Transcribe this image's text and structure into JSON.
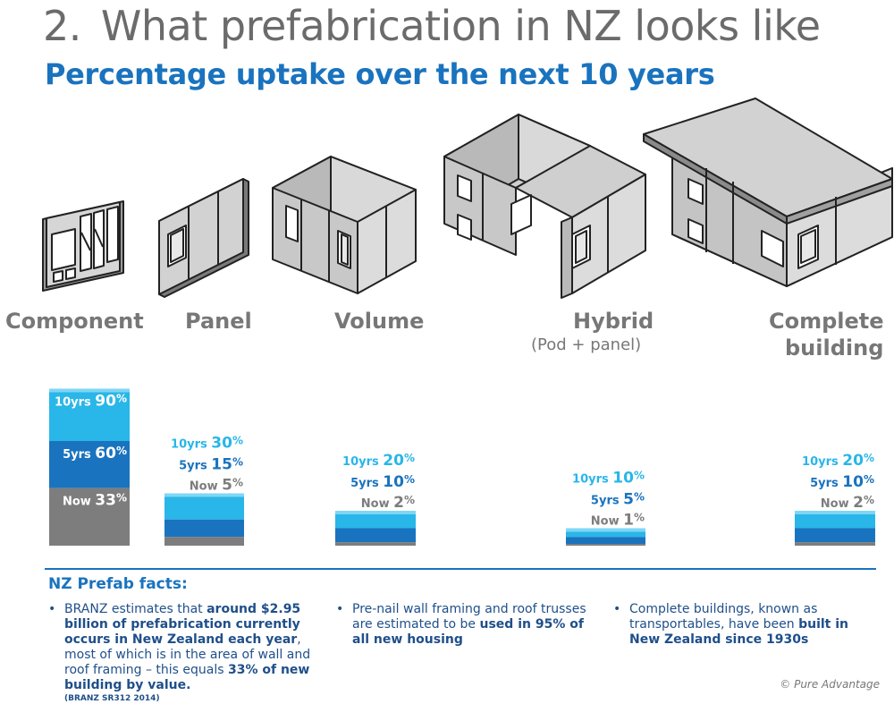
{
  "title": {
    "number": "2.",
    "text": "What prefabrication in NZ looks like"
  },
  "subtitle": "Percentage uptake over the next 10 years",
  "categories": [
    {
      "label": "Component",
      "sub": ""
    },
    {
      "label": "Panel",
      "sub": ""
    },
    {
      "label": "Volume",
      "sub": ""
    },
    {
      "label": "Hybrid",
      "sub": "(Pod + panel)"
    },
    {
      "label": "Complete",
      "label2": "building",
      "sub": ""
    }
  ],
  "chart_data": {
    "type": "bar",
    "title": "Percentage uptake over the next 10 years",
    "categories": [
      "Component",
      "Panel",
      "Volume",
      "Hybrid",
      "Complete building"
    ],
    "series": [
      {
        "name": "Now",
        "values": [
          33,
          5,
          2,
          1,
          2
        ]
      },
      {
        "name": "5yrs",
        "values": [
          60,
          15,
          10,
          5,
          10
        ]
      },
      {
        "name": "10yrs",
        "values": [
          90,
          30,
          20,
          10,
          20
        ]
      }
    ],
    "unit": "%",
    "ylim": [
      0,
      100
    ],
    "xlabel": "",
    "ylabel": "",
    "colors": {
      "Now": "#7d7d7d",
      "5yrs": "#1a73be",
      "10yrs": "#29b6e8"
    }
  },
  "facts": {
    "heading": "NZ Prefab facts:",
    "bullet": "•",
    "items": [
      {
        "pre": "BRANZ estimates that ",
        "bold": "around $2.95 billion of prefabrication currently occurs in New Zealand each year",
        "post": ", most of which is in the area of wall and roof framing – this equals ",
        "bold2": "33% of new building by value.",
        "cite": "(BRANZ SR312 2014)"
      },
      {
        "pre": "Pre-nail wall framing and roof trusses are estimated to be ",
        "bold": "used in 95% of all new housing",
        "post": "",
        "bold2": "",
        "cite": ""
      },
      {
        "pre": "Complete buildings, known as transportables, have been ",
        "bold": "built in New Zealand since 1930s",
        "post": "",
        "bold2": "",
        "cite": ""
      }
    ]
  },
  "copyright": "© Pure Advantage",
  "colors": {
    "title": "#6b6b6b",
    "accent": "#1a73be",
    "grey": "#7d7d7d",
    "light_blue": "#29b6e8",
    "fact_text": "#1f4f8a"
  }
}
